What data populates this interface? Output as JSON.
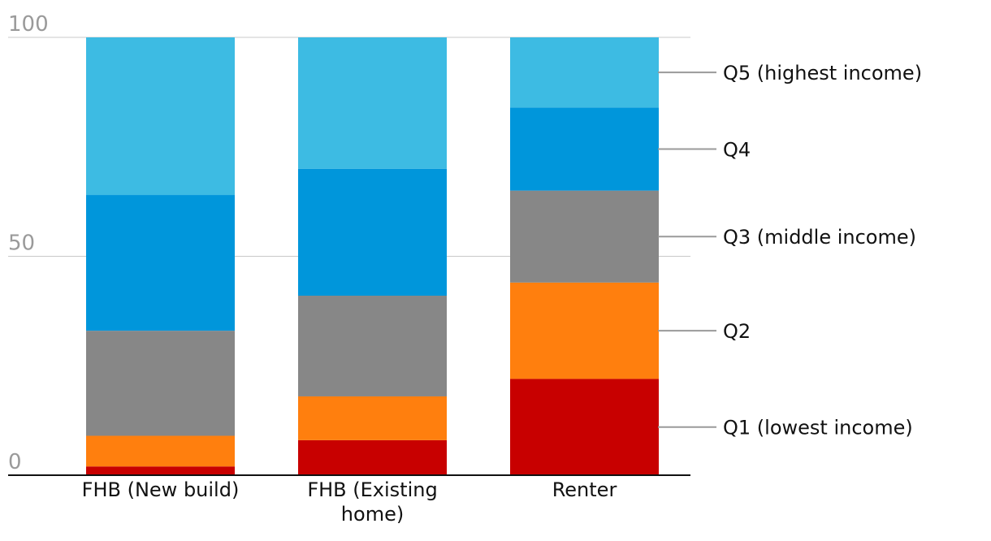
{
  "chart_data": {
    "type": "bar",
    "stacked": true,
    "categories": [
      "FHB (New build)",
      "FHB (Existing home)",
      "Renter"
    ],
    "series": [
      {
        "name": "Q1 (lowest income)",
        "color": "#c80000",
        "values": [
          2,
          8,
          22
        ]
      },
      {
        "name": "Q2",
        "color": "#ff7f0e",
        "values": [
          7,
          10,
          22
        ]
      },
      {
        "name": "Q3 (middle income)",
        "color": "#878787",
        "values": [
          24,
          23,
          21
        ]
      },
      {
        "name": "Q4",
        "color": "#0096db",
        "values": [
          31,
          29,
          19
        ]
      },
      {
        "name": "Q5 (highest income)",
        "color": "#3dbbe3",
        "values": [
          36,
          30,
          16
        ]
      }
    ],
    "ylim": [
      0,
      100
    ],
    "yticks": [
      0,
      50,
      100
    ],
    "grid": true,
    "legend": "right, direct labels"
  }
}
